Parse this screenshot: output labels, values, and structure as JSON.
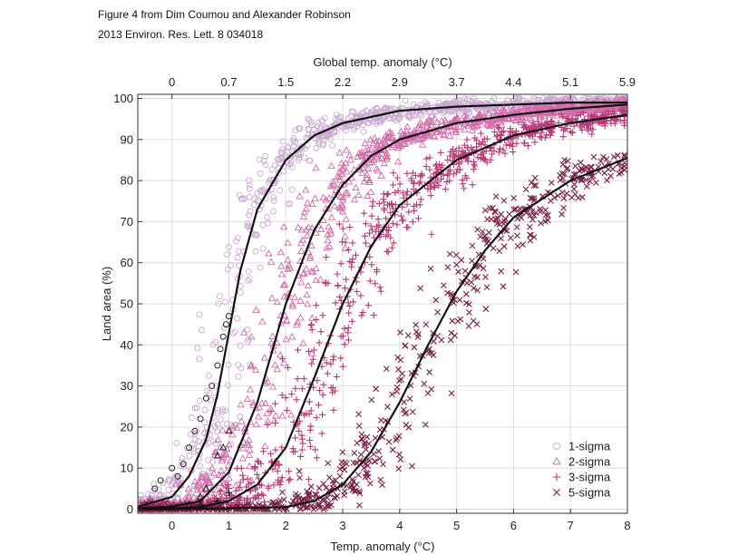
{
  "header": {
    "line1": "Figure 4 from Dim Coumou and Alexander Robinson",
    "line2": "2013 Environ. Res. Lett. 8 034018"
  },
  "chart_data": {
    "type": "scatter",
    "title": "",
    "xlabel": "Temp. anomaly (°C)",
    "ylabel": "Land area (%)",
    "top_xlabel": "Global temp. anomaly (°C)",
    "xlim": [
      -0.6,
      8
    ],
    "ylim": [
      -1,
      101
    ],
    "x_ticks": [
      0,
      1,
      2,
      3,
      4,
      5,
      6,
      7,
      8
    ],
    "y_ticks": [
      0,
      10,
      20,
      30,
      40,
      50,
      60,
      70,
      80,
      90,
      100
    ],
    "top_ticks": [
      {
        "x": 0,
        "label": "0"
      },
      {
        "x": 1,
        "label": "0.7"
      },
      {
        "x": 2,
        "label": "1.5"
      },
      {
        "x": 3,
        "label": "2.2"
      },
      {
        "x": 4,
        "label": "2.9"
      },
      {
        "x": 5,
        "label": "3.7"
      },
      {
        "x": 6,
        "label": "4.4"
      },
      {
        "x": 7,
        "label": "5.1"
      },
      {
        "x": 8,
        "label": "5.9"
      }
    ],
    "grid": true,
    "legend_position": "bottom-right",
    "series": [
      {
        "name": "1-sigma",
        "marker": "circle",
        "color": "#c9a8cf",
        "fit_curve": [
          [
            -0.6,
            0.6
          ],
          [
            0,
            3
          ],
          [
            0.3,
            8
          ],
          [
            0.6,
            17
          ],
          [
            0.8,
            28
          ],
          [
            1.0,
            43
          ],
          [
            1.2,
            58
          ],
          [
            1.5,
            73
          ],
          [
            2.0,
            85
          ],
          [
            2.5,
            91
          ],
          [
            3.0,
            94
          ],
          [
            4.0,
            97
          ],
          [
            5.0,
            98
          ],
          [
            6.0,
            98.5
          ],
          [
            7.0,
            99
          ],
          [
            8.0,
            99
          ]
        ],
        "observed_points": [
          [
            -0.3,
            5
          ],
          [
            -0.2,
            7
          ],
          [
            0,
            10
          ],
          [
            0.1,
            8
          ],
          [
            0.2,
            11
          ],
          [
            0.3,
            15
          ],
          [
            0.4,
            19
          ],
          [
            0.5,
            22
          ],
          [
            0.6,
            27
          ],
          [
            0.7,
            30
          ],
          [
            0.8,
            35
          ],
          [
            0.85,
            39
          ],
          [
            0.9,
            42
          ],
          [
            0.95,
            45
          ],
          [
            1.0,
            47
          ]
        ]
      },
      {
        "name": "2-sigma",
        "marker": "triangle",
        "color": "#d26aa9",
        "fit_curve": [
          [
            -0.6,
            0.2
          ],
          [
            0,
            0.6
          ],
          [
            0.5,
            2
          ],
          [
            1.0,
            9
          ],
          [
            1.5,
            26
          ],
          [
            2.0,
            50
          ],
          [
            2.5,
            68
          ],
          [
            3.0,
            79
          ],
          [
            3.5,
            86
          ],
          [
            4.0,
            90
          ],
          [
            5.0,
            94
          ],
          [
            6.0,
            96
          ],
          [
            7.0,
            97.5
          ],
          [
            8.0,
            98.5
          ]
        ],
        "observed_points": [
          [
            0.3,
            1
          ],
          [
            0.5,
            3
          ],
          [
            0.6,
            5
          ],
          [
            0.8,
            13
          ],
          [
            0.9,
            15
          ],
          [
            1.0,
            19
          ]
        ]
      },
      {
        "name": "3-sigma",
        "marker": "plus",
        "color": "#b83a78",
        "fit_curve": [
          [
            -0.6,
            0
          ],
          [
            0,
            0.2
          ],
          [
            0.5,
            0.5
          ],
          [
            1.0,
            2
          ],
          [
            1.5,
            6
          ],
          [
            2.0,
            15
          ],
          [
            2.5,
            32
          ],
          [
            3.0,
            50
          ],
          [
            3.5,
            64
          ],
          [
            4.0,
            74
          ],
          [
            5.0,
            85
          ],
          [
            6.0,
            91
          ],
          [
            7.0,
            94
          ],
          [
            8.0,
            96
          ]
        ],
        "observed_points": [
          [
            0.5,
            1
          ],
          [
            0.8,
            2
          ],
          [
            1.0,
            4
          ]
        ]
      },
      {
        "name": "5-sigma",
        "marker": "cross",
        "color": "#7a1f46",
        "fit_curve": [
          [
            -0.6,
            0
          ],
          [
            0,
            0
          ],
          [
            1.0,
            0.2
          ],
          [
            2.0,
            0.5
          ],
          [
            2.5,
            2
          ],
          [
            3.0,
            6
          ],
          [
            3.5,
            14
          ],
          [
            4.0,
            26
          ],
          [
            4.5,
            40
          ],
          [
            5.0,
            53
          ],
          [
            5.5,
            63
          ],
          [
            6.0,
            71
          ],
          [
            7.0,
            80
          ],
          [
            8.0,
            85.5
          ]
        ],
        "observed_points": []
      }
    ]
  }
}
